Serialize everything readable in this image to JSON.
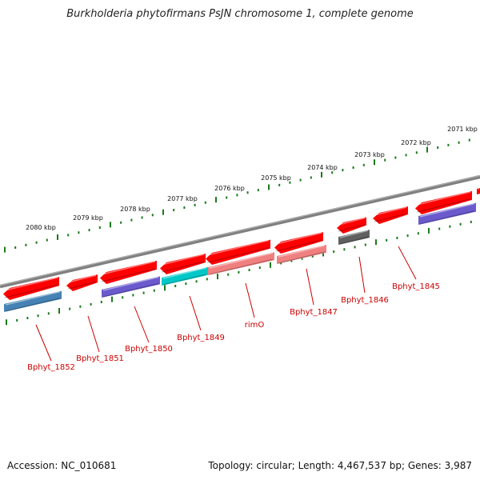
{
  "title": "Burkholderia phytofirmans PsJN chromosome 1, complete genome",
  "footer": {
    "accession": "Accession: NC_010681",
    "summary": "Topology: circular; Length: 4,467,537 bp; Genes: 3,987"
  },
  "ticks": [
    "2071 kbp",
    "2072 kbp",
    "2073 kbp",
    "2074 kbp",
    "2075 kbp",
    "2076 kbp",
    "2077 kbp",
    "2078 kbp",
    "2079 kbp",
    "2080 kbp"
  ],
  "gene_labels": [
    "Bphyt_1845",
    "Bphyt_1846",
    "Bphyt_1847",
    "rimO",
    "Bphyt_1849",
    "Bphyt_1850",
    "Bphyt_1851",
    "Bphyt_1852"
  ],
  "colors": {
    "forward_gene": "#ff0000",
    "cds_salmon": "#f08080",
    "cds_purple": "#6a5acd",
    "cds_cyan": "#00c8c8",
    "cds_steelblue": "#4682b4",
    "cds_gray": "#606060",
    "backbone": "#808080",
    "tick_green": "#1a7a1a",
    "label_red": "#cc0000"
  }
}
